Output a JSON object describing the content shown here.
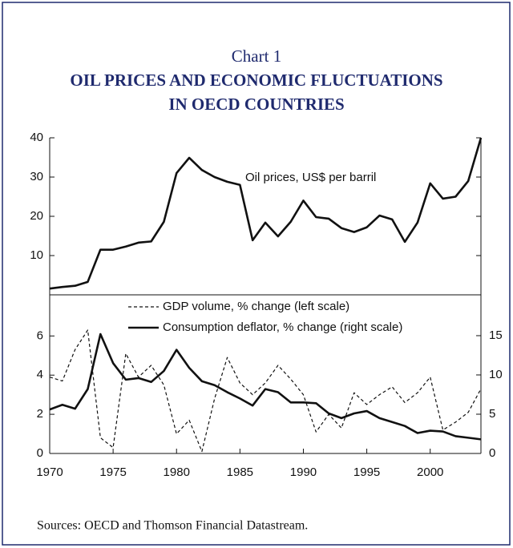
{
  "title": "Chart 1",
  "subtitle": "OIL PRICES AND ECONOMIC FLUCTUATIONS",
  "subtitle2": "IN OECD COUNTRIES",
  "source": "Sources: OECD and Thomson Financial Datastream.",
  "chart_data": [
    {
      "type": "line",
      "annotation": "Oil prices, US$ per barril",
      "x": [
        1970,
        1971,
        1972,
        1973,
        1974,
        1975,
        1976,
        1977,
        1978,
        1979,
        1980,
        1981,
        1982,
        1983,
        1984,
        1985,
        1986,
        1987,
        1988,
        1989,
        1990,
        1991,
        1992,
        1993,
        1994,
        1995,
        1996,
        1997,
        1998,
        1999,
        2000,
        2001,
        2002,
        2003,
        2004
      ],
      "series": [
        {
          "color": "#111111",
          "linestyle": "solid",
          "values": [
            1.6,
            2.0,
            2.3,
            3.3,
            11.5,
            11.5,
            12.3,
            13.3,
            13.6,
            18.6,
            31.0,
            34.9,
            31.8,
            30.0,
            28.8,
            28.0,
            13.9,
            18.4,
            14.9,
            18.6,
            24.0,
            19.8,
            19.4,
            17.0,
            16.0,
            17.2,
            20.2,
            19.2,
            13.5,
            18.4,
            28.4,
            24.5,
            25.0,
            29.0,
            40.0
          ]
        }
      ],
      "xlim": [
        1970,
        2004
      ],
      "ylim": [
        0,
        40
      ],
      "yticks": [
        10,
        20,
        30,
        40
      ]
    },
    {
      "type": "line",
      "x": [
        1970,
        1971,
        1972,
        1973,
        1974,
        1975,
        1976,
        1977,
        1978,
        1979,
        1980,
        1981,
        1982,
        1983,
        1984,
        1985,
        1986,
        1987,
        1988,
        1989,
        1990,
        1991,
        1992,
        1993,
        1994,
        1995,
        1996,
        1997,
        1998,
        1999,
        2000,
        2001,
        2002,
        2003,
        2004
      ],
      "series": [
        {
          "name": "GDP volume, % change (left scale)",
          "color": "#111111",
          "linestyle": "dashed",
          "values": [
            3.9,
            3.7,
            5.3,
            6.3,
            0.8,
            0.3,
            5.1,
            3.9,
            4.5,
            3.5,
            1.0,
            1.7,
            0.1,
            2.8,
            4.9,
            3.6,
            3.0,
            3.6,
            4.5,
            3.8,
            3.0,
            1.1,
            2.0,
            1.3,
            3.1,
            2.5,
            3.0,
            3.4,
            2.6,
            3.1,
            3.9,
            1.2,
            1.6,
            2.1,
            3.3
          ]
        },
        {
          "name": "Consumption deflator, % change (right scale)",
          "color": "#111111",
          "linestyle": "solid",
          "axis": "y2",
          "values": [
            5.6,
            6.2,
            5.7,
            8.2,
            15.2,
            11.5,
            9.4,
            9.6,
            9.1,
            10.5,
            13.2,
            10.9,
            9.2,
            8.7,
            7.8,
            7.0,
            6.1,
            8.2,
            7.8,
            6.5,
            6.5,
            6.4,
            5.1,
            4.5,
            5.1,
            5.4,
            4.5,
            4.0,
            3.5,
            2.6,
            2.9,
            2.8,
            2.2,
            2.0,
            1.8
          ]
        }
      ],
      "xlim": [
        1970,
        2004
      ],
      "xticks": [
        1970,
        1975,
        1980,
        1985,
        1990,
        1995,
        2000
      ],
      "ylim": [
        0,
        8.1
      ],
      "yticks": [
        0,
        2,
        4,
        6
      ],
      "y2lim": [
        0,
        20.2
      ],
      "y2ticks": [
        0,
        5,
        10,
        15
      ]
    }
  ]
}
